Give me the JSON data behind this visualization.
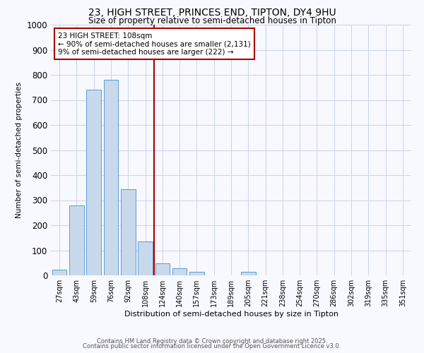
{
  "title_line1": "23, HIGH STREET, PRINCES END, TIPTON, DY4 9HU",
  "title_line2": "Size of property relative to semi-detached houses in Tipton",
  "xlabel": "Distribution of semi-detached houses by size in Tipton",
  "ylabel": "Number of semi-detached properties",
  "bar_color": "#c9d9ec",
  "bar_edge_color": "#5b9bd5",
  "categories": [
    "27sqm",
    "43sqm",
    "59sqm",
    "76sqm",
    "92sqm",
    "108sqm",
    "124sqm",
    "140sqm",
    "157sqm",
    "173sqm",
    "189sqm",
    "205sqm",
    "221sqm",
    "238sqm",
    "254sqm",
    "270sqm",
    "286sqm",
    "302sqm",
    "319sqm",
    "335sqm",
    "351sqm"
  ],
  "values": [
    22,
    278,
    742,
    780,
    345,
    135,
    48,
    27,
    13,
    0,
    0,
    13,
    0,
    0,
    0,
    0,
    0,
    0,
    0,
    0,
    0
  ],
  "ylim": [
    0,
    1000
  ],
  "yticks": [
    0,
    100,
    200,
    300,
    400,
    500,
    600,
    700,
    800,
    900,
    1000
  ],
  "vline_x": 5.5,
  "vline_color": "#aa0000",
  "annotation_title": "23 HIGH STREET: 108sqm",
  "annotation_line1": "← 90% of semi-detached houses are smaller (2,131)",
  "annotation_line2": "9% of semi-detached houses are larger (222) →",
  "annotation_box_color": "#aa0000",
  "footnote_line1": "Contains HM Land Registry data © Crown copyright and database right 2025.",
  "footnote_line2": "Contains public sector information licensed under the Open Government Licence v3.0.",
  "background_color": "#f8f8ff",
  "grid_color": "#c8d4e8"
}
